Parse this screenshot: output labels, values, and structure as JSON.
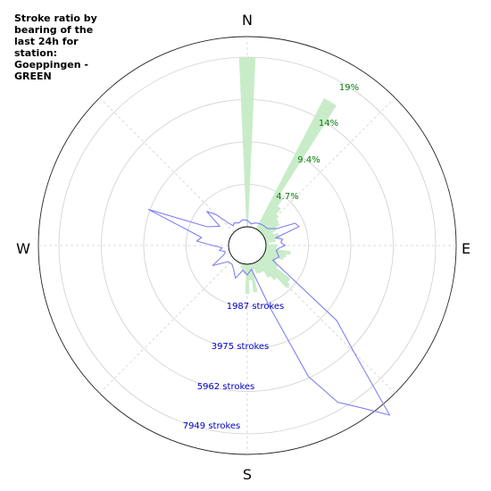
{
  "chart_data": {
    "type": "polar",
    "title": "Stroke ratio by bearing of the last 24h for station: Goeppingen - GREEN",
    "directions": [
      "N",
      "E",
      "S",
      "W"
    ],
    "ratio_ticks": [
      "4.7%",
      "9.4%",
      "14%",
      "19%"
    ],
    "count_ticks": [
      "1987 strokes",
      "3975 strokes",
      "5962 strokes",
      "7949 strokes"
    ],
    "grid": true,
    "colors": {
      "ratio_fill": "#c8ecc8",
      "count_line": "#8080f0",
      "ratio_text": "#0b7a0b",
      "count_text": "#0000cc"
    },
    "series": [
      {
        "type": "bar",
        "bin_deg": 5,
        "bearings_deg": [
          0,
          30,
          35,
          40,
          45,
          50,
          55,
          60,
          65,
          70,
          75,
          80,
          85,
          90,
          95,
          100,
          105,
          110,
          115,
          120,
          125,
          130,
          135,
          140,
          145,
          150,
          155,
          160,
          165,
          170,
          175,
          180,
          185,
          190,
          195,
          200,
          205
        ],
        "ratio_pct": [
          19.0,
          16.5,
          4.5,
          3.5,
          2.7,
          2.3,
          2.2,
          1.6,
          1.1,
          1.6,
          1.7,
          1.1,
          0.3,
          1.2,
          1.2,
          2.8,
          2.4,
          2.2,
          1.4,
          1.6,
          2.0,
          4.0,
          4.4,
          2.8,
          2.2,
          1.3,
          1.3,
          1.2,
          0.7,
          3.2,
          1.8,
          3.3,
          1.1,
          0.8,
          0.5,
          0.2,
          0.2
        ]
      },
      {
        "type": "line",
        "bearings_deg": [
          0,
          10,
          20,
          30,
          40,
          50,
          60,
          65,
          70,
          75,
          80,
          85,
          90,
          95,
          100,
          110,
          120,
          130,
          135,
          140,
          145,
          150,
          155,
          160,
          170,
          180,
          190,
          200,
          210,
          220,
          230,
          240,
          245,
          250,
          255,
          260,
          265,
          270,
          275,
          280,
          285,
          290,
          295,
          300,
          305,
          310,
          315,
          320,
          325,
          330,
          340,
          350
        ],
        "strokes": [
          300,
          150,
          250,
          300,
          330,
          350,
          700,
          1600,
          1700,
          500,
          800,
          700,
          900,
          600,
          500,
          700,
          500,
          4600,
          6200,
          9500,
          8400,
          7600,
          5900,
          2200,
          250,
          500,
          300,
          750,
          400,
          250,
          300,
          1000,
          500,
          250,
          200,
          450,
          300,
          750,
          1500,
          1300,
          2100,
          4050,
          1200,
          900,
          700,
          1600,
          1150,
          500,
          250,
          350,
          250,
          350
        ]
      }
    ]
  }
}
